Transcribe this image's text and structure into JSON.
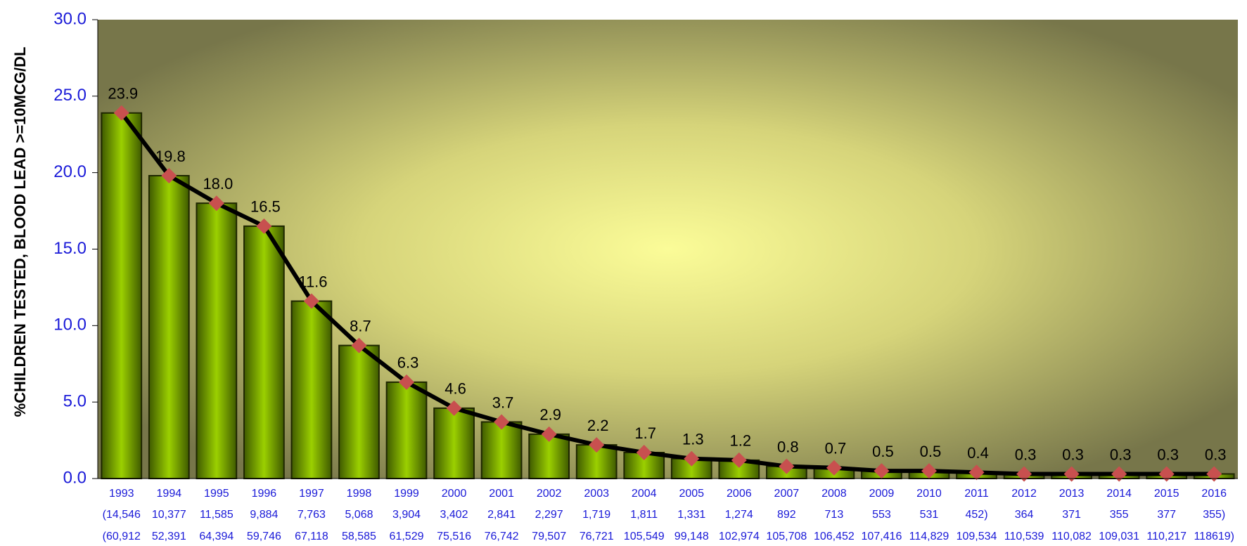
{
  "chart_data": {
    "type": "bar-line",
    "y_axis_label": "%CHILDREN TESTED, BLOOD LEAD >=10MCG/DL",
    "categories": [
      "1993",
      "1994",
      "1995",
      "1996",
      "1997",
      "1998",
      "1999",
      "2000",
      "2001",
      "2002",
      "2003",
      "2004",
      "2005",
      "2006",
      "2007",
      "2008",
      "2009",
      "2010",
      "2011",
      "2012",
      "2013",
      "2014",
      "2015",
      "2016"
    ],
    "category_sublabels": [
      [
        "(14,546",
        "10,377",
        "11,585",
        "9,884",
        "7,763",
        "5,068",
        "3,904",
        "3,402",
        "2,841",
        "2,297",
        "1,719",
        "1,811",
        "1,331",
        "1,274",
        "892",
        "713",
        "553",
        "531",
        "452)",
        "364",
        "371",
        "355",
        "377",
        "355)"
      ],
      [
        "(60,912",
        "52,391",
        "64,394",
        "59,746",
        "67,118",
        "58,585",
        "61,529",
        "75,516",
        "76,742",
        "79,507",
        "76,721",
        "105,549",
        "99,148",
        "102,974",
        "105,708",
        "106,452",
        "107,416",
        "114,829",
        "109,534",
        "110,539",
        "110,082",
        "109,031",
        "110,217",
        "118619)"
      ]
    ],
    "values": [
      23.9,
      19.8,
      18.0,
      16.5,
      11.6,
      8.7,
      6.3,
      4.6,
      3.7,
      2.9,
      2.2,
      1.7,
      1.3,
      1.2,
      0.8,
      0.7,
      0.5,
      0.5,
      0.4,
      0.3,
      0.3,
      0.3,
      0.3,
      0.3
    ],
    "value_labels": [
      "23.9",
      "19.8",
      "18.0",
      "16.5",
      "11.6",
      "8.7",
      "6.3",
      "4.6",
      "3.7",
      "2.9",
      "2.2",
      "1.7",
      "1.3",
      "1.2",
      "0.8",
      "0.7",
      "0.5",
      "0.5",
      "0.4",
      "0.3",
      "0.3",
      "0.3",
      "0.3",
      "0.3"
    ],
    "bar_color": "#8fc400",
    "line_color": "#000000",
    "marker_color": "#c8504f",
    "ylim": [
      0,
      30
    ],
    "yticks": [
      {
        "value": 0,
        "label": "0.0"
      },
      {
        "value": 5,
        "label": "5.0"
      },
      {
        "value": 10,
        "label": "10.0"
      },
      {
        "value": 15,
        "label": "15.0"
      },
      {
        "value": 20,
        "label": "20.0"
      },
      {
        "value": 25,
        "label": "25.0"
      },
      {
        "value": 30,
        "label": "30.0"
      }
    ]
  }
}
